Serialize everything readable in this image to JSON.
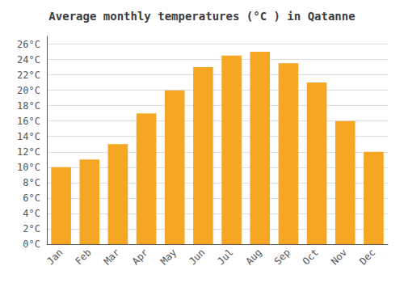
{
  "chart_data": {
    "type": "bar",
    "title": "Average monthly temperatures (°C ) in Qatanne",
    "categories": [
      "Jan",
      "Feb",
      "Mar",
      "Apr",
      "May",
      "Jun",
      "Jul",
      "Aug",
      "Sep",
      "Oct",
      "Nov",
      "Dec"
    ],
    "values": [
      10.0,
      11.0,
      13.0,
      17.0,
      20.0,
      23.0,
      24.5,
      25.0,
      23.5,
      21.0,
      16.0,
      12.0
    ],
    "color": "#F5A623",
    "ylim": [
      0,
      27
    ],
    "yticks": [
      {
        "value": 0,
        "label": "0°C"
      },
      {
        "value": 2,
        "label": "2°C"
      },
      {
        "value": 4,
        "label": "4°C"
      },
      {
        "value": 6,
        "label": "6°C"
      },
      {
        "value": 8,
        "label": "8°C"
      },
      {
        "value": 10,
        "label": "10°C"
      },
      {
        "value": 12,
        "label": "12°C"
      },
      {
        "value": 14,
        "label": "14°C"
      },
      {
        "value": 16,
        "label": "16°C"
      },
      {
        "value": 18,
        "label": "18°C"
      },
      {
        "value": 20,
        "label": "20°C"
      },
      {
        "value": 22,
        "label": "22°C"
      },
      {
        "value": 24,
        "label": "24°C"
      },
      {
        "value": 26,
        "label": "26°C"
      }
    ],
    "grid": true
  }
}
